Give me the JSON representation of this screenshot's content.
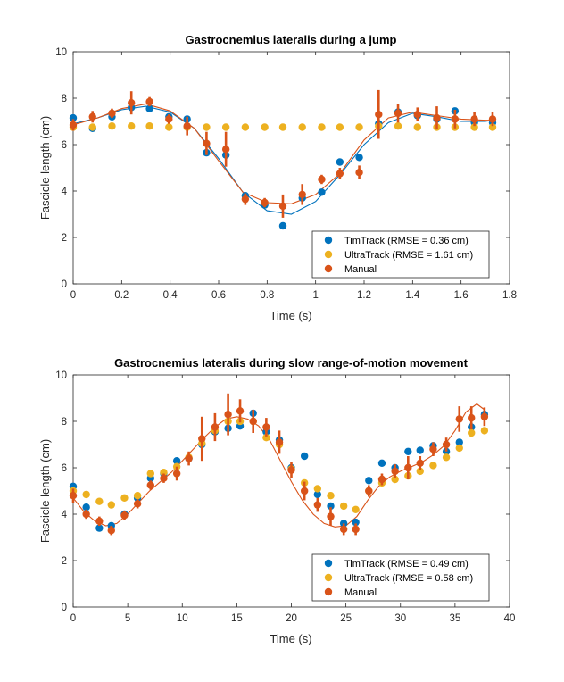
{
  "colors": {
    "timtrack": "#0072BD",
    "ultratrack": "#EDB120",
    "manual": "#D95319",
    "axis": "#262626"
  },
  "chart_data": [
    {
      "type": "scatter",
      "title": "Gastrocnemius lateralis during a jump",
      "xlabel": "Time (s)",
      "ylabel": "Fascicle length (cm)",
      "xlim": [
        0,
        1.8
      ],
      "ylim": [
        0,
        10
      ],
      "xticks": [
        "0",
        "0.2",
        "0.4",
        "0.6",
        "0.8",
        "1",
        "1.2",
        "1.4",
        "1.6",
        "1.8"
      ],
      "yticks": [
        "0",
        "2",
        "4",
        "6",
        "8",
        "10"
      ],
      "legend_position": "bottom-right",
      "series": [
        {
          "name": "TimTrack (RMSE = 0.36 cm)",
          "color": "#0072BD",
          "x": [
            0,
            0.08,
            0.16,
            0.24,
            0.315,
            0.395,
            0.47,
            0.55,
            0.63,
            0.71,
            0.79,
            0.865,
            0.945,
            1.025,
            1.1,
            1.18,
            1.26,
            1.34,
            1.42,
            1.5,
            1.575,
            1.655,
            1.73
          ],
          "y": [
            7.15,
            6.7,
            7.2,
            7.6,
            7.55,
            7.2,
            7.1,
            5.65,
            5.55,
            3.8,
            3.4,
            2.5,
            3.7,
            3.95,
            5.25,
            5.45,
            6.9,
            7.4,
            7.25,
            7.1,
            7.45,
            6.95,
            6.95
          ],
          "fit": {
            "x": [
              0,
              0.1,
              0.2,
              0.3,
              0.4,
              0.5,
              0.6,
              0.7,
              0.8,
              0.9,
              1.0,
              1.1,
              1.2,
              1.3,
              1.4,
              1.5,
              1.6,
              1.7,
              1.73
            ],
            "y": [
              6.9,
              7.15,
              7.5,
              7.65,
              7.4,
              6.7,
              5.4,
              3.95,
              3.15,
              3.0,
              3.55,
              4.7,
              6.0,
              6.95,
              7.35,
              7.2,
              7.0,
              7.0,
              7.05
            ]
          }
        },
        {
          "name": "UltraTrack (RMSE = 1.61 cm)",
          "color": "#EDB120",
          "x": [
            0,
            0.08,
            0.16,
            0.24,
            0.315,
            0.395,
            0.47,
            0.55,
            0.63,
            0.71,
            0.79,
            0.865,
            0.945,
            1.025,
            1.1,
            1.18,
            1.26,
            1.34,
            1.42,
            1.5,
            1.575,
            1.655,
            1.73
          ],
          "y": [
            6.75,
            6.75,
            6.8,
            6.8,
            6.8,
            6.75,
            6.75,
            6.75,
            6.75,
            6.75,
            6.75,
            6.75,
            6.75,
            6.75,
            6.75,
            6.75,
            6.8,
            6.8,
            6.75,
            6.75,
            6.75,
            6.75,
            6.75
          ]
        },
        {
          "name": "Manual",
          "color": "#D95319",
          "x": [
            0,
            0.08,
            0.16,
            0.24,
            0.315,
            0.395,
            0.47,
            0.55,
            0.63,
            0.71,
            0.79,
            0.865,
            0.945,
            1.025,
            1.1,
            1.18,
            1.26,
            1.34,
            1.42,
            1.5,
            1.575,
            1.655,
            1.73
          ],
          "y": [
            6.85,
            7.2,
            7.35,
            7.8,
            7.85,
            7.1,
            6.8,
            6.05,
            5.8,
            3.65,
            3.5,
            3.35,
            3.85,
            4.5,
            4.75,
            4.8,
            7.3,
            7.35,
            7.3,
            7.15,
            7.1,
            7.1,
            7.1
          ],
          "err": [
            0.25,
            0.25,
            0.2,
            0.5,
            0.2,
            0.2,
            0.4,
            0.5,
            0.75,
            0.25,
            0.2,
            0.5,
            0.45,
            0.2,
            0.25,
            0.3,
            1.05,
            0.4,
            0.3,
            0.5,
            0.4,
            0.3,
            0.3
          ],
          "fit": {
            "x": [
              0,
              0.1,
              0.2,
              0.3,
              0.4,
              0.5,
              0.6,
              0.7,
              0.8,
              0.9,
              1.0,
              1.1,
              1.2,
              1.3,
              1.4,
              1.5,
              1.6,
              1.7,
              1.73
            ],
            "y": [
              6.85,
              7.15,
              7.55,
              7.75,
              7.45,
              6.7,
              5.3,
              3.95,
              3.5,
              3.45,
              3.85,
              4.75,
              6.2,
              7.15,
              7.4,
              7.25,
              7.1,
              7.05,
              7.05
            ]
          }
        }
      ]
    },
    {
      "type": "scatter",
      "title": "Gastrocnemius lateralis during slow range-of-motion movement",
      "xlabel": "Time (s)",
      "ylabel": "Fascicle length (cm)",
      "xlim": [
        0,
        40
      ],
      "ylim": [
        0,
        10
      ],
      "xticks": [
        "0",
        "5",
        "10",
        "15",
        "20",
        "25",
        "30",
        "35",
        "40"
      ],
      "yticks": [
        "0",
        "2",
        "4",
        "6",
        "8",
        "10"
      ],
      "legend_position": "bottom-right",
      "series": [
        {
          "name": "TimTrack (RMSE = 0.49 cm)",
          "color": "#0072BD",
          "x": [
            0,
            1.2,
            2.4,
            3.5,
            4.7,
            5.9,
            7.1,
            8.3,
            9.5,
            10.6,
            11.8,
            13.0,
            14.2,
            15.3,
            16.5,
            17.7,
            18.9,
            20.0,
            21.2,
            22.4,
            23.6,
            24.8,
            25.9,
            27.1,
            28.3,
            29.5,
            30.7,
            31.8,
            33.0,
            34.2,
            35.4,
            36.5,
            37.7
          ],
          "y": [
            5.2,
            4.3,
            3.4,
            3.5,
            4.0,
            4.7,
            5.55,
            5.75,
            6.3,
            6.4,
            7.0,
            7.55,
            7.7,
            7.8,
            8.35,
            7.55,
            7.2,
            6.0,
            6.5,
            4.85,
            4.35,
            3.6,
            3.65,
            5.45,
            6.2,
            6.0,
            6.7,
            6.75,
            6.95,
            6.7,
            7.1,
            7.75,
            8.3
          ]
        },
        {
          "name": "UltraTrack (RMSE = 0.58 cm)",
          "color": "#EDB120",
          "x": [
            0,
            1.2,
            2.4,
            3.5,
            4.7,
            5.9,
            7.1,
            8.3,
            9.5,
            10.6,
            11.8,
            13.0,
            14.2,
            15.3,
            16.5,
            17.7,
            18.9,
            20.0,
            21.2,
            22.4,
            23.6,
            24.8,
            25.9,
            27.1,
            28.3,
            29.5,
            30.7,
            31.8,
            33.0,
            34.2,
            35.4,
            36.5,
            37.7
          ],
          "y": [
            5.0,
            4.85,
            4.55,
            4.4,
            4.7,
            4.8,
            5.75,
            5.8,
            6.05,
            6.45,
            7.05,
            7.6,
            8.0,
            8.0,
            8.0,
            7.3,
            7.0,
            5.95,
            5.35,
            5.1,
            4.8,
            4.35,
            4.2,
            5.0,
            5.35,
            5.5,
            5.65,
            5.85,
            6.1,
            6.45,
            6.85,
            7.5,
            7.6
          ]
        },
        {
          "name": "Manual",
          "color": "#D95319",
          "x": [
            0,
            1.2,
            2.4,
            3.5,
            4.7,
            5.9,
            7.1,
            8.3,
            9.5,
            10.6,
            11.8,
            13.0,
            14.2,
            15.3,
            16.5,
            17.7,
            18.9,
            20.0,
            21.2,
            22.4,
            23.6,
            24.8,
            25.9,
            27.1,
            28.3,
            29.5,
            30.7,
            31.8,
            33.0,
            34.2,
            35.4,
            36.5,
            37.7
          ],
          "y": [
            4.8,
            4.0,
            3.7,
            3.3,
            3.95,
            4.45,
            5.25,
            5.55,
            5.75,
            6.4,
            7.25,
            7.75,
            8.3,
            8.45,
            8.0,
            7.75,
            7.1,
            5.9,
            5.0,
            4.4,
            3.9,
            3.35,
            3.35,
            5.0,
            5.5,
            5.85,
            6.0,
            6.2,
            6.8,
            7.0,
            8.1,
            8.15,
            8.2
          ],
          "err": [
            0.3,
            0.2,
            0.2,
            0.2,
            0.2,
            0.2,
            0.2,
            0.2,
            0.3,
            0.3,
            0.95,
            0.6,
            0.9,
            0.5,
            0.5,
            0.4,
            0.5,
            0.35,
            0.4,
            0.3,
            0.4,
            0.25,
            0.25,
            0.25,
            0.25,
            0.3,
            0.5,
            0.3,
            0.3,
            0.3,
            0.55,
            0.5,
            0.4
          ],
          "fit": {
            "x": [
              0,
              1,
              2,
              3,
              4,
              5,
              6,
              7,
              8,
              9,
              10,
              11,
              12,
              13,
              14,
              15,
              16,
              17,
              18,
              19,
              20,
              21,
              22,
              23,
              24,
              25,
              26,
              27,
              28,
              29,
              30,
              31,
              32,
              33,
              34,
              35,
              36,
              37,
              37.7
            ],
            "y": [
              4.7,
              4.1,
              3.7,
              3.5,
              3.6,
              4.0,
              4.5,
              5.0,
              5.4,
              5.8,
              6.3,
              6.8,
              7.3,
              7.75,
              8.1,
              8.2,
              8.1,
              7.8,
              7.2,
              6.3,
              5.4,
              4.6,
              4.0,
              3.6,
              3.45,
              3.5,
              3.9,
              4.6,
              5.2,
              5.6,
              5.85,
              6.05,
              6.25,
              6.55,
              6.95,
              7.6,
              8.4,
              8.75,
              8.5
            ]
          }
        }
      ]
    }
  ]
}
